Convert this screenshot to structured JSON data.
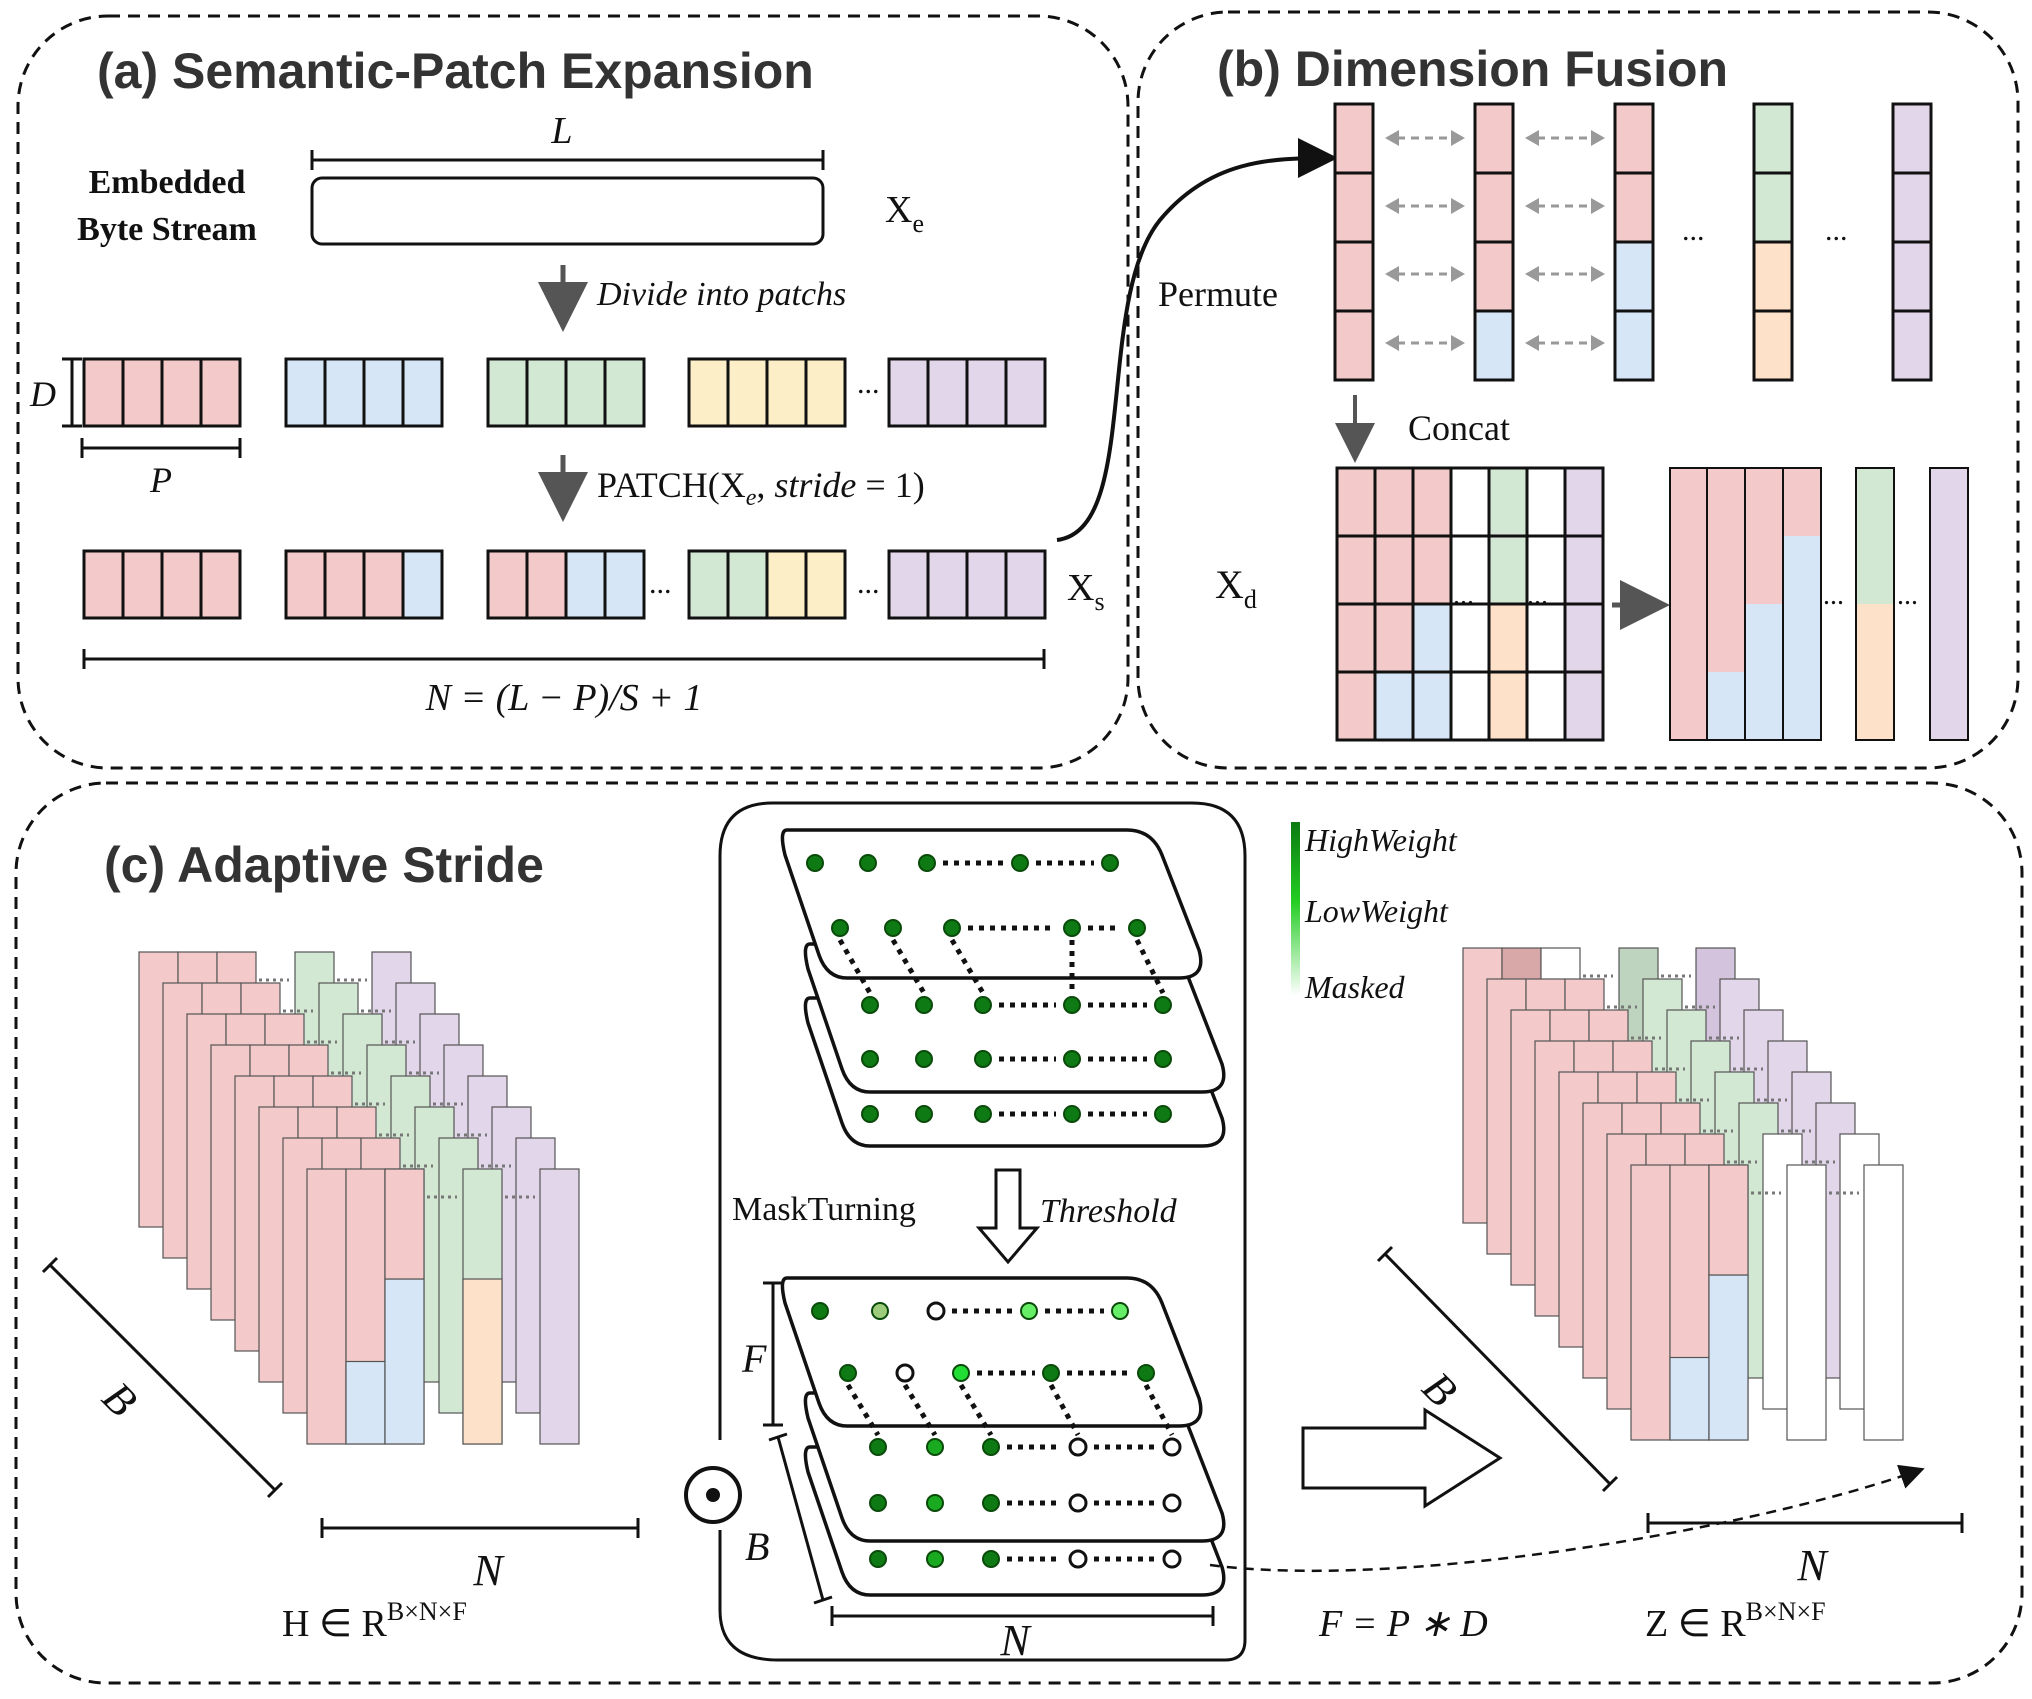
{
  "panels": {
    "a": {
      "title": "(a) Semantic-Patch Expansion",
      "stream_label_line1": "Embedded",
      "stream_label_line2": "Byte Stream",
      "length_symbol": "L",
      "xe_main": "X",
      "xe_sub": "e",
      "divide_label": "Divide into patchs",
      "d_symbol": "D",
      "p_symbol": "P",
      "patch_fn": "PATCH(X",
      "patch_sub": "e",
      "patch_mid": ", ",
      "patch_stride": "stride",
      "patch_end": " = 1)",
      "xs_main": "X",
      "xs_sub": "s",
      "n_formula": "N = (L − P)/S + 1"
    },
    "b": {
      "title": "(b) Dimension Fusion",
      "permute_label": "Permute",
      "concat_label": "Concat",
      "xd_main": "X",
      "xd_sub": "d",
      "ellipsis": "..."
    },
    "c": {
      "title": "(c) Adaptive Stride",
      "b_symbol": "B",
      "n_symbol": "N",
      "f_symbol": "F",
      "h_main": "H ∈ R",
      "h_sup": "B×N×F",
      "z_main": "Z ∈ R",
      "z_sup": "B×N×F",
      "mask_turning": "MaskTurning",
      "threshold": "Threshold",
      "f_formula": "F = P ∗ D",
      "hadamard": "⊙",
      "legend": {
        "high": "HighWeight",
        "low": "LowWeight",
        "masked": "Masked"
      }
    }
  },
  "colors": {
    "pink": "#f4c9c9",
    "blue": "#d6e6f7",
    "green": "#d3e8d3",
    "yellow": "#fcefc8",
    "purple": "#e2d6ea",
    "peach": "#fde2c9",
    "dark_green": "#0e7a13",
    "mid_green": "#1aaa22",
    "light_green": "#66ee66",
    "pale_green": "#9ccc7c"
  }
}
